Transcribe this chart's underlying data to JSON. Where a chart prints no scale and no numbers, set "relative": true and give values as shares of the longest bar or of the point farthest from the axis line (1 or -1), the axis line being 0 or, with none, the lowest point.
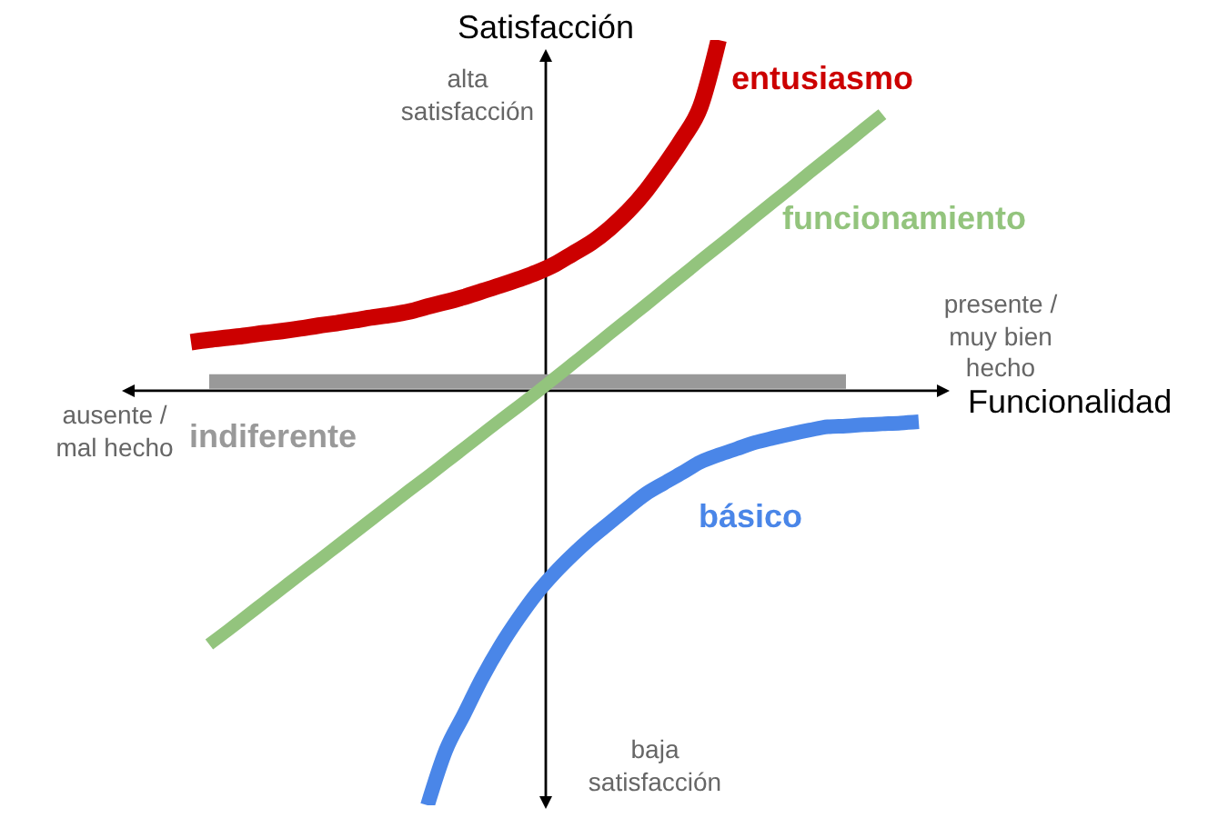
{
  "chart_data": {
    "type": "line",
    "relative": true,
    "xlabel": "Funcionalidad",
    "ylabel": "Satisfacción",
    "categories": [
      null,
      null,
      null,
      null,
      null,
      null,
      null,
      null,
      null,
      null,
      null,
      null,
      null,
      null,
      null,
      null,
      null,
      null,
      null,
      null,
      null,
      null,
      null,
      null,
      null,
      null,
      null,
      null,
      null,
      null,
      null,
      null,
      null,
      null,
      null,
      null,
      null,
      null,
      null,
      null,
      null
    ],
    "series": [
      {
        "name": "entusiasmo",
        "color": "#cc0000",
        "values": [
          0.117,
          0.123,
          0.128,
          0.133,
          0.139,
          0.144,
          0.15,
          0.157,
          0.163,
          0.17,
          0.177,
          0.183,
          0.191,
          0.203,
          0.214,
          0.226,
          0.24,
          0.254,
          0.269,
          0.285,
          0.305,
          0.331,
          0.357,
          0.391,
          0.432,
          0.482,
          0.542,
          0.607,
          0.685,
          0.846,
          null,
          null,
          null,
          null,
          null,
          null,
          null,
          null,
          null,
          null,
          null
        ]
      },
      {
        "name": "indiferente",
        "color": "#999999",
        "values": [
          null,
          0.022,
          0.022,
          0.022,
          0.022,
          0.022,
          0.022,
          0.022,
          0.022,
          0.022,
          0.022,
          0.022,
          0.022,
          0.022,
          0.022,
          0.022,
          0.022,
          0.022,
          0.022,
          0.022,
          0.022,
          0.022,
          0.022,
          0.022,
          0.022,
          0.022,
          0.022,
          0.022,
          0.022,
          0.022,
          0.022,
          0.022,
          0.022,
          0.022,
          0.022,
          0.022,
          0.022,
          null,
          null,
          null,
          null
        ]
      },
      {
        "name": "funcionamiento",
        "color": "#93c47d",
        "values": [
          null,
          -0.612,
          -0.579,
          -0.545,
          -0.511,
          -0.477,
          -0.443,
          -0.41,
          -0.376,
          -0.342,
          -0.308,
          -0.274,
          -0.24,
          -0.207,
          -0.173,
          -0.139,
          -0.105,
          -0.071,
          -0.038,
          -0.004,
          0.031,
          0.066,
          0.101,
          0.137,
          0.172,
          0.207,
          0.243,
          0.278,
          0.314,
          0.349,
          0.384,
          0.42,
          0.455,
          0.49,
          0.526,
          0.561,
          0.596,
          0.632,
          0.667,
          null,
          null
        ]
      },
      {
        "name": "básico",
        "color": "#4a86e8",
        "values": [
          null,
          null,
          null,
          null,
          null,
          null,
          null,
          null,
          null,
          null,
          null,
          null,
          null,
          -1,
          -0.868,
          -0.781,
          -0.693,
          -0.616,
          -0.549,
          -0.489,
          -0.439,
          -0.395,
          -0.355,
          -0.319,
          -0.283,
          -0.249,
          -0.223,
          -0.198,
          -0.172,
          -0.155,
          -0.14,
          -0.125,
          -0.114,
          -0.104,
          -0.095,
          -0.087,
          -0.085,
          -0.082,
          -0.08,
          -0.078,
          -0.075
        ]
      }
    ],
    "annotations": [
      "alta satisfacción",
      "baja satisfacción",
      "presente / muy bien hecho",
      "ausente / mal hecho"
    ]
  }
}
